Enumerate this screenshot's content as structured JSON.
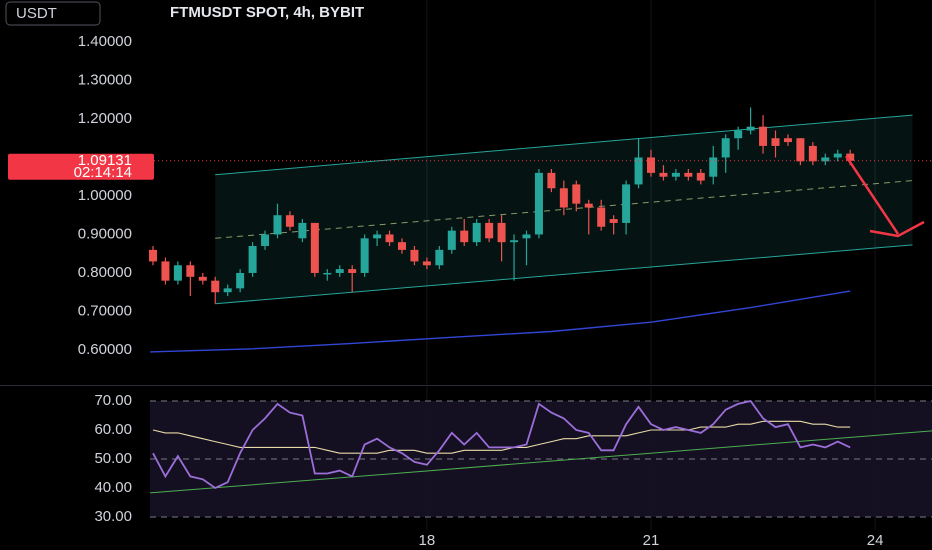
{
  "chart_data": [
    {
      "type": "candlestick",
      "title": "FTMUSDT SPOT, 4h, BYBIT",
      "currency": "USDT",
      "xlim": [
        -0.24,
        62.57
      ],
      "xticks": [
        {
          "value": 22,
          "label": "18"
        },
        {
          "value": 40,
          "label": "21"
        },
        {
          "value": 58,
          "label": "24"
        }
      ],
      "ylim": [
        0.509,
        1.509
      ],
      "yticks": [
        {
          "value": 0.6,
          "label": "0.60000"
        },
        {
          "value": 0.7,
          "label": "0.70000"
        },
        {
          "value": 0.8,
          "label": "0.80000"
        },
        {
          "value": 0.9,
          "label": "0.90000"
        },
        {
          "value": 1.0,
          "label": "1.00000"
        },
        {
          "value": 1.2,
          "label": "1.20000"
        },
        {
          "value": 1.3,
          "label": "1.30000"
        },
        {
          "value": 1.4,
          "label": "1.40000"
        }
      ],
      "up_color": "#26a69a",
      "down_color": "#ef5350",
      "open": [
        0.86,
        0.83,
        0.78,
        0.82,
        0.79,
        0.78,
        0.75,
        0.76,
        0.8,
        0.87,
        0.9,
        0.95,
        0.89,
        0.93,
        0.8,
        0.8,
        0.81,
        0.8,
        0.89,
        0.9,
        0.88,
        0.86,
        0.83,
        0.82,
        0.86,
        0.91,
        0.88,
        0.93,
        0.93,
        0.88,
        0.89,
        0.9,
        1.06,
        1.02,
        1.03,
        0.98,
        0.97,
        0.94,
        0.93,
        1.03,
        1.1,
        1.06,
        1.05,
        1.06,
        1.06,
        1.05,
        1.1,
        1.15,
        1.17,
        1.18,
        1.15,
        1.15,
        1.15,
        1.13,
        1.09,
        1.1,
        1.11
      ],
      "high": [
        0.87,
        0.84,
        0.83,
        0.83,
        0.8,
        0.79,
        0.77,
        0.81,
        0.88,
        0.91,
        0.98,
        0.96,
        0.94,
        0.93,
        0.81,
        0.82,
        0.82,
        0.9,
        0.91,
        0.91,
        0.89,
        0.87,
        0.84,
        0.87,
        0.92,
        0.94,
        0.94,
        0.94,
        0.95,
        0.9,
        0.91,
        1.07,
        1.07,
        1.04,
        1.04,
        0.99,
        0.99,
        0.95,
        1.04,
        1.15,
        1.12,
        1.08,
        1.07,
        1.07,
        1.07,
        1.13,
        1.16,
        1.18,
        1.23,
        1.21,
        1.17,
        1.16,
        1.15,
        1.14,
        1.11,
        1.12,
        1.12
      ],
      "low": [
        0.82,
        0.77,
        0.77,
        0.74,
        0.77,
        0.72,
        0.74,
        0.75,
        0.79,
        0.86,
        0.89,
        0.91,
        0.88,
        0.79,
        0.78,
        0.79,
        0.75,
        0.79,
        0.87,
        0.87,
        0.85,
        0.82,
        0.81,
        0.81,
        0.85,
        0.87,
        0.87,
        0.88,
        0.83,
        0.78,
        0.82,
        0.89,
        1.01,
        0.95,
        0.96,
        0.9,
        0.91,
        0.9,
        0.9,
        1.02,
        1.05,
        1.04,
        1.04,
        1.04,
        1.03,
        1.03,
        1.06,
        1.12,
        1.16,
        1.11,
        1.1,
        1.13,
        1.08,
        1.08,
        1.08,
        1.09,
        1.08
      ],
      "close": [
        0.83,
        0.78,
        0.82,
        0.79,
        0.78,
        0.75,
        0.76,
        0.8,
        0.87,
        0.9,
        0.95,
        0.92,
        0.93,
        0.8,
        0.8,
        0.81,
        0.8,
        0.89,
        0.9,
        0.88,
        0.86,
        0.83,
        0.82,
        0.86,
        0.91,
        0.88,
        0.93,
        0.89,
        0.88,
        0.885,
        0.9,
        1.06,
        1.02,
        0.97,
        0.98,
        0.97,
        0.92,
        0.93,
        1.03,
        1.1,
        1.06,
        1.05,
        1.06,
        1.05,
        1.04,
        1.1,
        1.15,
        1.17,
        1.18,
        1.13,
        1.13,
        1.14,
        1.09,
        1.09,
        1.1,
        1.11,
        1.09131
      ],
      "channel": {
        "color": "#26a69a",
        "upper": {
          "x": [
            5,
            61
          ],
          "y": [
            1.055,
            1.21
          ]
        },
        "middle": {
          "x": [
            5,
            61
          ],
          "y": [
            0.89,
            1.04
          ]
        },
        "lower": {
          "x": [
            5,
            61
          ],
          "y": [
            0.72,
            0.873
          ]
        }
      },
      "moving_average": {
        "color": "#3246d6",
        "x": [
          -0.24,
          8,
          16,
          24,
          32,
          40,
          48,
          56
        ],
        "values": [
          0.595,
          0.603,
          0.617,
          0.633,
          0.648,
          0.672,
          0.71,
          0.753
        ]
      },
      "last_price": 1.09131,
      "last_price_color": "#f23645",
      "countdown": "02:14:14"
    },
    {
      "type": "line",
      "xlim": [
        -0.24,
        62.57
      ],
      "ylim": [
        25.5,
        74.5
      ],
      "yticks": [
        {
          "value": 30,
          "label": "30.00"
        },
        {
          "value": 40,
          "label": "40.00"
        },
        {
          "value": 50,
          "label": "50.00"
        },
        {
          "value": 60,
          "label": "60.00"
        },
        {
          "value": 70,
          "label": "70.00"
        }
      ],
      "series": [
        {
          "color": "#9b6fd8",
          "values": [
            52,
            44,
            51,
            44,
            43,
            40,
            42,
            52,
            60,
            64,
            69,
            66,
            65,
            45,
            45,
            46,
            44,
            55,
            57,
            54,
            52,
            49,
            48,
            53,
            59,
            55,
            59,
            54,
            54,
            54,
            55,
            69,
            66,
            64,
            60,
            59,
            53,
            53,
            62,
            68,
            62,
            60,
            61,
            60,
            59,
            62,
            67,
            69,
            70,
            64,
            61,
            62,
            54,
            55,
            54,
            56,
            54
          ]
        },
        {
          "color": "#e6dba6",
          "values": [
            60,
            59,
            59,
            58,
            57,
            56,
            55,
            54,
            54,
            54,
            54,
            54,
            54,
            54,
            53,
            52,
            52,
            52,
            52,
            53,
            53,
            53,
            52,
            52,
            52,
            53,
            53,
            53,
            53,
            54,
            54,
            55,
            56,
            57,
            57,
            58,
            58,
            58,
            58,
            59,
            60,
            60,
            60,
            60,
            61,
            61,
            61,
            62,
            62,
            63,
            63,
            63,
            63,
            62,
            62,
            61,
            61
          ]
        }
      ],
      "trendline": {
        "color": "#4caf50",
        "x": [
          -0.24,
          62.57
        ],
        "y": [
          38.3,
          59.7
        ]
      }
    }
  ]
}
